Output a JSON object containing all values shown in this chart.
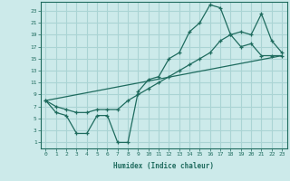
{
  "background_color": "#cceaea",
  "grid_color": "#aad4d4",
  "line_color": "#1e6b5e",
  "xlabel": "Humidex (Indice chaleur)",
  "yticks": [
    1,
    3,
    5,
    7,
    9,
    11,
    13,
    15,
    17,
    19,
    21,
    23
  ],
  "xticks": [
    0,
    1,
    2,
    3,
    4,
    5,
    6,
    7,
    8,
    9,
    10,
    11,
    12,
    13,
    14,
    15,
    16,
    17,
    18,
    19,
    20,
    21,
    22,
    23
  ],
  "xlim": [
    -0.5,
    23.5
  ],
  "ylim": [
    0.0,
    24.5
  ],
  "line1_x": [
    0,
    1,
    2,
    3,
    4,
    5,
    6,
    7,
    8,
    9,
    10,
    11,
    12,
    13,
    14,
    15,
    16,
    17,
    18,
    19,
    20,
    21,
    22,
    23
  ],
  "line1_y": [
    8,
    6,
    5.5,
    2.5,
    2.5,
    5.5,
    5.5,
    1,
    1,
    9.5,
    11.5,
    12,
    15,
    16,
    19.5,
    21,
    24,
    23.5,
    19,
    17,
    17.5,
    15.5,
    15.5,
    15.5
  ],
  "line2_x": [
    0,
    23
  ],
  "line2_y": [
    8,
    15.5
  ],
  "line3_x": [
    0,
    1,
    2,
    3,
    4,
    5,
    6,
    7,
    8,
    9,
    10,
    11,
    12,
    13,
    14,
    15,
    16,
    17,
    18,
    19,
    20,
    21,
    22,
    23
  ],
  "line3_y": [
    8,
    7,
    6.5,
    6,
    6,
    6.5,
    6.5,
    6.5,
    8,
    9,
    10,
    11,
    12,
    13,
    14,
    15,
    16,
    18,
    19,
    19.5,
    19,
    22.5,
    18,
    16
  ]
}
